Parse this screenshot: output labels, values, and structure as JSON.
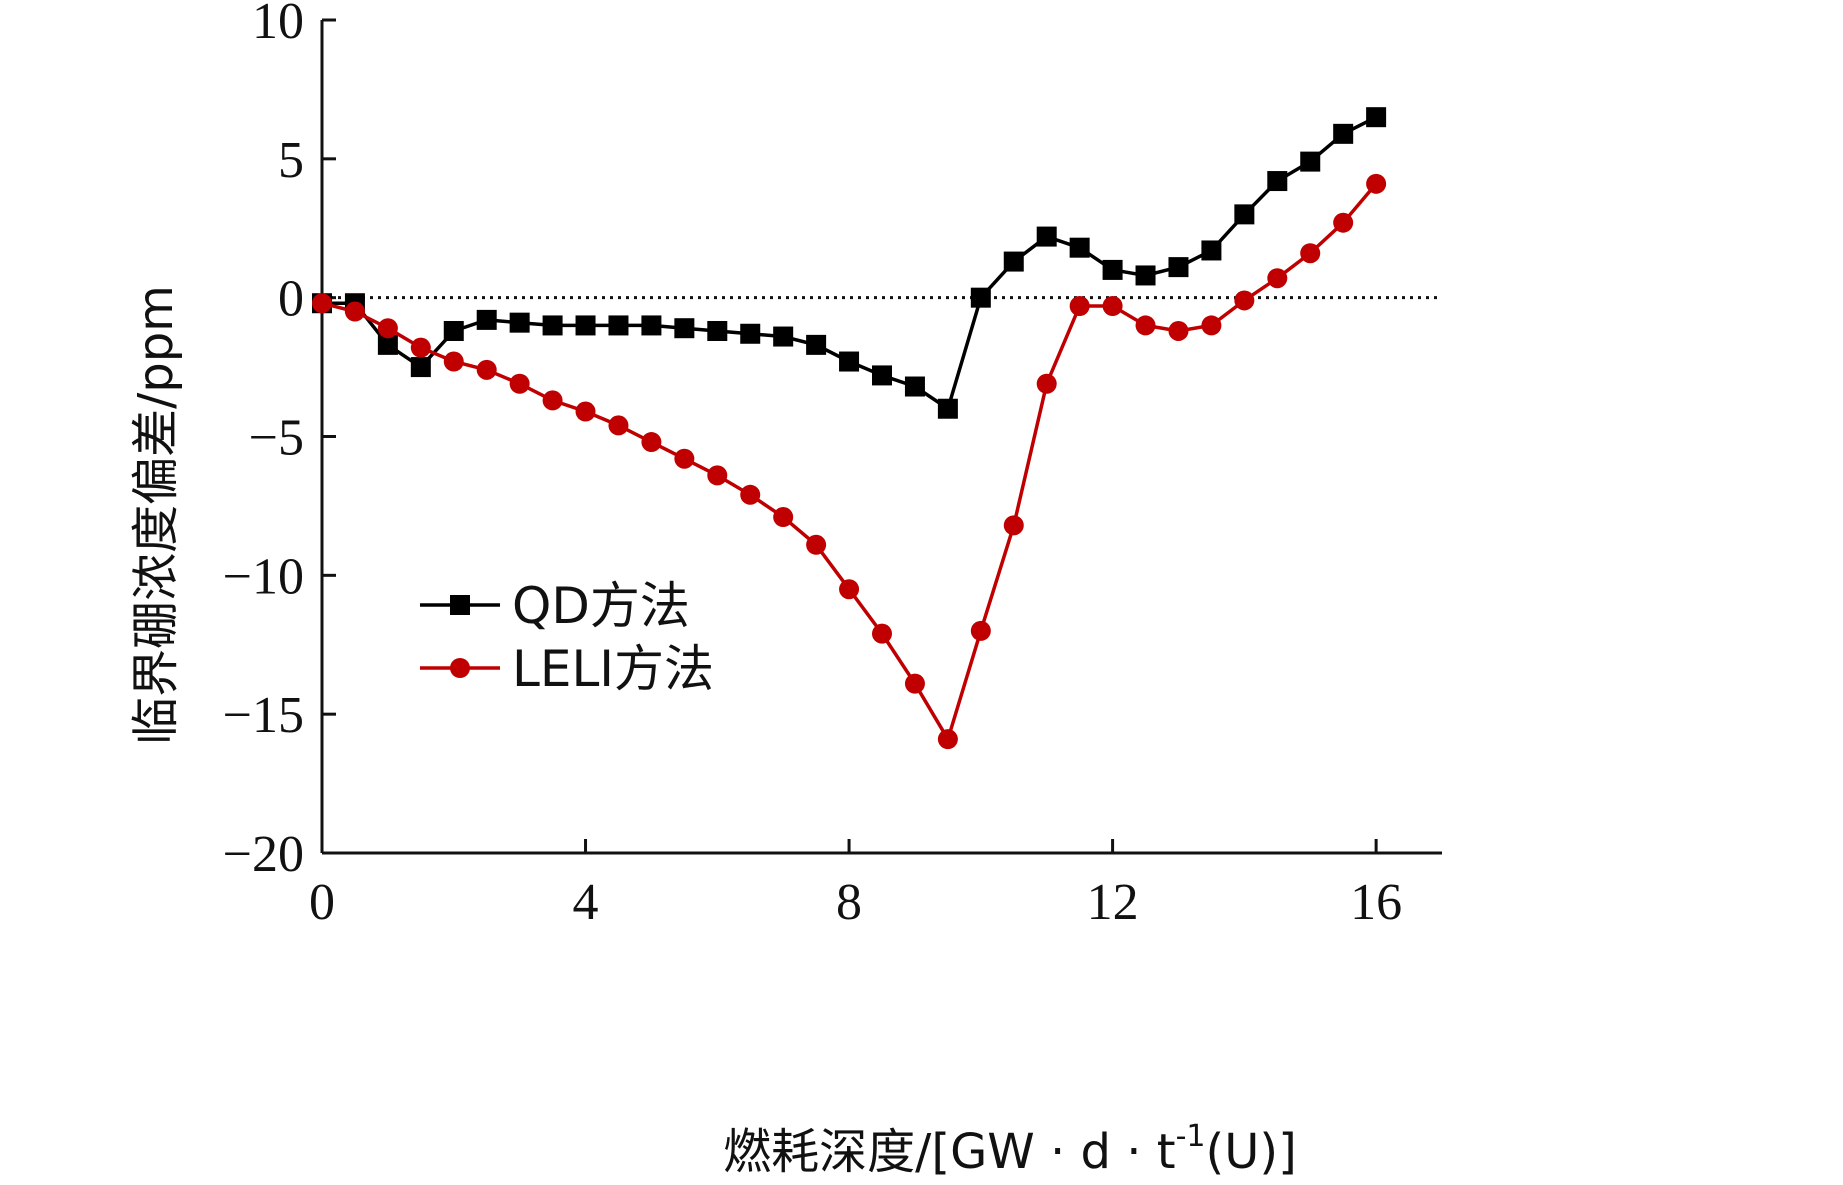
{
  "chart_data": {
    "type": "line",
    "xlabel": "燃耗深度/[GW · d · t⁻¹(U)]",
    "xlabel_parts": {
      "main": "燃耗深度/[GW · d · t",
      "sup": "-1",
      "tail": "(U)]"
    },
    "ylabel": "临界硼浓度偏差/ppm",
    "xlim": [
      0,
      17
    ],
    "ylim": [
      -20,
      10
    ],
    "xticks": [
      0,
      4,
      8,
      12,
      16
    ],
    "yticks": [
      10,
      5,
      0,
      -5,
      -10,
      -15,
      -20
    ],
    "xtick_labels": [
      "0",
      "4",
      "8",
      "12",
      "16"
    ],
    "ytick_labels": [
      "10",
      "5",
      "0",
      "−5",
      "−10",
      "−15",
      "−20"
    ],
    "reference_line": {
      "y": 0,
      "style": "dotted"
    },
    "grid": false,
    "legend_position": "center-left",
    "series": [
      {
        "name": "QD方法",
        "color": "#000000",
        "marker": "square",
        "x": [
          0,
          0.5,
          1,
          1.5,
          2,
          2.5,
          3,
          3.5,
          4,
          4.5,
          5,
          5.5,
          6,
          6.5,
          7,
          7.5,
          8,
          8.5,
          9,
          9.5,
          10,
          10.5,
          11,
          11.5,
          12,
          12.5,
          13,
          13.5,
          14,
          14.5,
          15,
          15.5,
          16
        ],
        "y": [
          -0.2,
          -0.2,
          -1.7,
          -2.5,
          -1.2,
          -0.8,
          -0.9,
          -1.0,
          -1.0,
          -1.0,
          -1.0,
          -1.1,
          -1.2,
          -1.3,
          -1.4,
          -1.7,
          -2.3,
          -2.8,
          -3.2,
          -4.0,
          0.0,
          1.3,
          2.2,
          1.8,
          1.0,
          0.8,
          1.1,
          1.7,
          3.0,
          4.2,
          4.9,
          5.9,
          6.5
        ]
      },
      {
        "name": "LELI方法",
        "color": "#c00000",
        "marker": "circle",
        "x": [
          0,
          0.5,
          1,
          1.5,
          2,
          2.5,
          3,
          3.5,
          4,
          4.5,
          5,
          5.5,
          6,
          6.5,
          7,
          7.5,
          8,
          8.5,
          9,
          9.5,
          10,
          10.5,
          11,
          11.5,
          12,
          12.5,
          13,
          13.5,
          14,
          14.5,
          15,
          15.5,
          16
        ],
        "y": [
          -0.2,
          -0.5,
          -1.1,
          -1.8,
          -2.3,
          -2.6,
          -3.1,
          -3.7,
          -4.1,
          -4.6,
          -5.2,
          -5.8,
          -6.4,
          -7.1,
          -7.9,
          -8.9,
          -10.5,
          -12.1,
          -13.9,
          -15.9,
          -12.0,
          -8.2,
          -3.1,
          -0.3,
          -0.3,
          -1.0,
          -1.2,
          -1.0,
          -0.1,
          0.7,
          1.6,
          2.7,
          4.1
        ]
      }
    ]
  }
}
